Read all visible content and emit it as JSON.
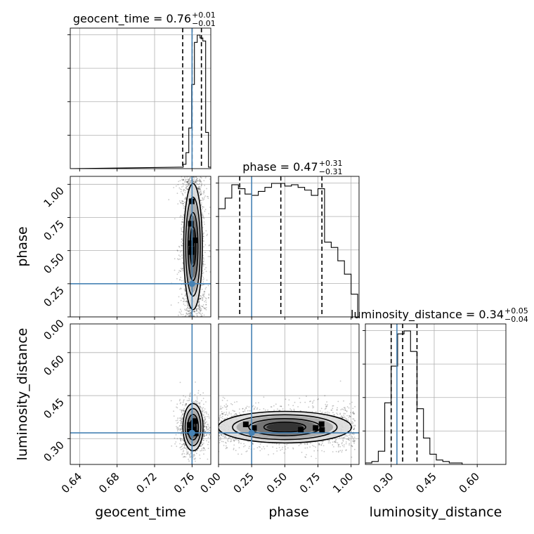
{
  "chart_data": {
    "type": "corner",
    "parameters": [
      "geocent_time",
      "phase",
      "luminosity_distance"
    ],
    "axis_labels": [
      "geocent_time",
      "phase",
      "luminosity_distance"
    ],
    "ranges": [
      [
        0.63,
        0.78
      ],
      [
        0.0,
        1.06
      ],
      [
        0.21,
        0.7
      ]
    ],
    "ticks": [
      {
        "values": [
          0.64,
          0.68,
          0.72,
          0.76
        ],
        "labels": [
          "0.64",
          "0.68",
          "0.72",
          "0.76"
        ]
      },
      {
        "values": [
          0.0,
          0.25,
          0.5,
          0.75,
          1.0
        ],
        "labels": [
          "0.00",
          "0.25",
          "0.50",
          "0.75",
          "1.00"
        ]
      },
      {
        "values": [
          0.3,
          0.45,
          0.6
        ],
        "labels": [
          "0.30",
          "0.45",
          "0.60"
        ]
      }
    ],
    "truths": [
      0.76,
      0.25,
      0.32
    ],
    "truth_color": "#4682b4",
    "titles": [
      {
        "main": "geocent_time = 0.76",
        "upper": "+0.01",
        "lower": "−0.01"
      },
      {
        "main": "phase = 0.47",
        "upper": "+0.31",
        "lower": "−0.31"
      },
      {
        "main": "luminosity_distance = 0.34",
        "upper": "+0.05",
        "lower": "−0.04"
      }
    ],
    "quantiles": [
      [
        0.75,
        0.76,
        0.77
      ],
      [
        0.16,
        0.47,
        0.78
      ],
      [
        0.3,
        0.34,
        0.39
      ]
    ],
    "histograms": [
      {
        "edges": [
          0.7475,
          0.7505,
          0.7535,
          0.7565,
          0.7595,
          0.7625,
          0.7655,
          0.7685,
          0.7715,
          0.7745,
          0.7775,
          0.7805
        ],
        "counts": [
          0.01,
          0.03,
          0.11,
          0.28,
          0.58,
          0.87,
          0.92,
          0.9,
          0.88,
          0.25,
          0.01
        ]
      },
      {
        "edges": [
          0.0,
          0.05,
          0.1,
          0.15,
          0.2,
          0.25,
          0.3,
          0.35,
          0.4,
          0.45,
          0.5,
          0.55,
          0.6,
          0.65,
          0.7,
          0.75,
          0.8,
          0.85,
          0.9,
          0.95,
          1.0,
          1.05
        ],
        "counts": [
          0.81,
          0.89,
          0.99,
          0.96,
          0.92,
          0.91,
          0.94,
          0.97,
          1.0,
          1.0,
          0.98,
          0.99,
          0.97,
          0.95,
          0.91,
          0.96,
          0.56,
          0.52,
          0.42,
          0.32,
          0.17
        ]
      },
      {
        "edges": [
          0.21,
          0.2325,
          0.255,
          0.2775,
          0.3,
          0.3225,
          0.345,
          0.3675,
          0.39,
          0.4125,
          0.435,
          0.4575,
          0.48,
          0.5025,
          0.525,
          0.5475,
          0.57,
          0.5925,
          0.615,
          0.6375,
          0.66,
          0.6825,
          0.705
        ],
        "counts": [
          0.01,
          0.02,
          0.09,
          0.42,
          0.67,
          0.89,
          0.91,
          0.77,
          0.38,
          0.18,
          0.07,
          0.03,
          0.02,
          0.01,
          0.01,
          0.0,
          0.0,
          0.0,
          0.0,
          0.0,
          0.0,
          0.0
        ]
      }
    ],
    "density_2d": [
      {
        "x_param": "geocent_time",
        "y_param": "phase",
        "mean": [
          0.761,
          0.53
        ],
        "sd": [
          0.0055,
          0.26
        ],
        "shape": "uniform-y",
        "scatter_x_range": [
          0.727,
          0.779
        ],
        "scatter_y_range": [
          0.0,
          1.06
        ]
      },
      {
        "x_param": "geocent_time",
        "y_param": "luminosity_distance",
        "mean": [
          0.761,
          0.34
        ],
        "sd": [
          0.0055,
          0.035
        ],
        "shape": "gaussian",
        "scatter_x_range": [
          0.727,
          0.779
        ],
        "scatter_y_range": [
          0.26,
          0.48
        ]
      },
      {
        "x_param": "phase",
        "y_param": "luminosity_distance",
        "mean": [
          0.5,
          0.34
        ],
        "sd": [
          0.27,
          0.03
        ],
        "shape": "uniform-x",
        "scatter_x_range": [
          0.0,
          1.03
        ],
        "scatter_y_range": [
          0.24,
          0.48
        ]
      }
    ],
    "grid": true,
    "sample_color": "#000000"
  }
}
